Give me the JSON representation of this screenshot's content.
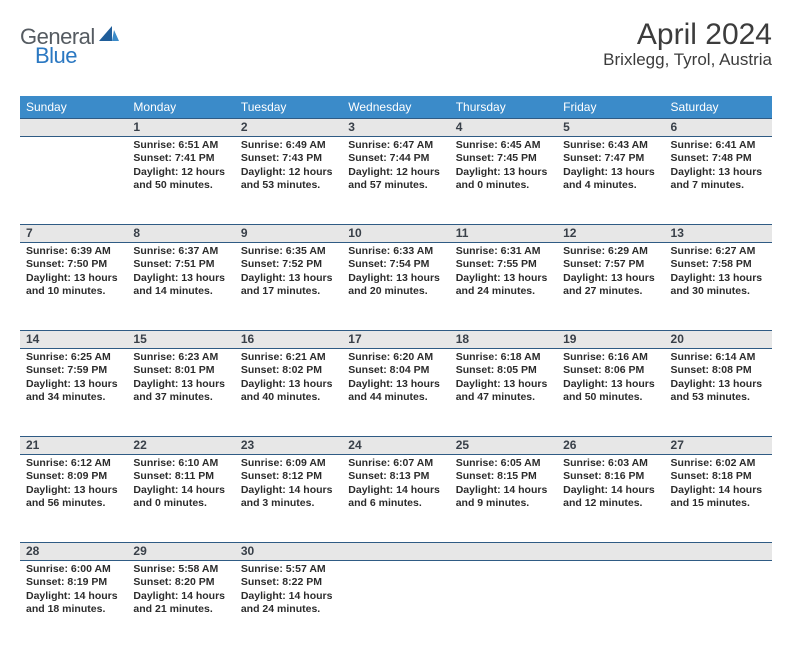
{
  "brand": {
    "name": "General",
    "accent": "Blue"
  },
  "title": "April 2024",
  "location": "Brixlegg, Tyrol, Austria",
  "colors": {
    "header_bg": "#3b8bc9",
    "header_text": "#ffffff",
    "daynum_bg": "#e7e7e7",
    "border": "#2f5b84",
    "body_text": "#2c2c2c",
    "title_text": "#3c3c3c",
    "logo_gray": "#555b61",
    "logo_blue": "#2b78c2"
  },
  "weekdays": [
    "Sunday",
    "Monday",
    "Tuesday",
    "Wednesday",
    "Thursday",
    "Friday",
    "Saturday"
  ],
  "weeks": [
    [
      null,
      {
        "d": "1",
        "sr": "6:51 AM",
        "ss": "7:41 PM",
        "dl": "Daylight: 12 hours and 50 minutes."
      },
      {
        "d": "2",
        "sr": "6:49 AM",
        "ss": "7:43 PM",
        "dl": "Daylight: 12 hours and 53 minutes."
      },
      {
        "d": "3",
        "sr": "6:47 AM",
        "ss": "7:44 PM",
        "dl": "Daylight: 12 hours and 57 minutes."
      },
      {
        "d": "4",
        "sr": "6:45 AM",
        "ss": "7:45 PM",
        "dl": "Daylight: 13 hours and 0 minutes."
      },
      {
        "d": "5",
        "sr": "6:43 AM",
        "ss": "7:47 PM",
        "dl": "Daylight: 13 hours and 4 minutes."
      },
      {
        "d": "6",
        "sr": "6:41 AM",
        "ss": "7:48 PM",
        "dl": "Daylight: 13 hours and 7 minutes."
      }
    ],
    [
      {
        "d": "7",
        "sr": "6:39 AM",
        "ss": "7:50 PM",
        "dl": "Daylight: 13 hours and 10 minutes."
      },
      {
        "d": "8",
        "sr": "6:37 AM",
        "ss": "7:51 PM",
        "dl": "Daylight: 13 hours and 14 minutes."
      },
      {
        "d": "9",
        "sr": "6:35 AM",
        "ss": "7:52 PM",
        "dl": "Daylight: 13 hours and 17 minutes."
      },
      {
        "d": "10",
        "sr": "6:33 AM",
        "ss": "7:54 PM",
        "dl": "Daylight: 13 hours and 20 minutes."
      },
      {
        "d": "11",
        "sr": "6:31 AM",
        "ss": "7:55 PM",
        "dl": "Daylight: 13 hours and 24 minutes."
      },
      {
        "d": "12",
        "sr": "6:29 AM",
        "ss": "7:57 PM",
        "dl": "Daylight: 13 hours and 27 minutes."
      },
      {
        "d": "13",
        "sr": "6:27 AM",
        "ss": "7:58 PM",
        "dl": "Daylight: 13 hours and 30 minutes."
      }
    ],
    [
      {
        "d": "14",
        "sr": "6:25 AM",
        "ss": "7:59 PM",
        "dl": "Daylight: 13 hours and 34 minutes."
      },
      {
        "d": "15",
        "sr": "6:23 AM",
        "ss": "8:01 PM",
        "dl": "Daylight: 13 hours and 37 minutes."
      },
      {
        "d": "16",
        "sr": "6:21 AM",
        "ss": "8:02 PM",
        "dl": "Daylight: 13 hours and 40 minutes."
      },
      {
        "d": "17",
        "sr": "6:20 AM",
        "ss": "8:04 PM",
        "dl": "Daylight: 13 hours and 44 minutes."
      },
      {
        "d": "18",
        "sr": "6:18 AM",
        "ss": "8:05 PM",
        "dl": "Daylight: 13 hours and 47 minutes."
      },
      {
        "d": "19",
        "sr": "6:16 AM",
        "ss": "8:06 PM",
        "dl": "Daylight: 13 hours and 50 minutes."
      },
      {
        "d": "20",
        "sr": "6:14 AM",
        "ss": "8:08 PM",
        "dl": "Daylight: 13 hours and 53 minutes."
      }
    ],
    [
      {
        "d": "21",
        "sr": "6:12 AM",
        "ss": "8:09 PM",
        "dl": "Daylight: 13 hours and 56 minutes."
      },
      {
        "d": "22",
        "sr": "6:10 AM",
        "ss": "8:11 PM",
        "dl": "Daylight: 14 hours and 0 minutes."
      },
      {
        "d": "23",
        "sr": "6:09 AM",
        "ss": "8:12 PM",
        "dl": "Daylight: 14 hours and 3 minutes."
      },
      {
        "d": "24",
        "sr": "6:07 AM",
        "ss": "8:13 PM",
        "dl": "Daylight: 14 hours and 6 minutes."
      },
      {
        "d": "25",
        "sr": "6:05 AM",
        "ss": "8:15 PM",
        "dl": "Daylight: 14 hours and 9 minutes."
      },
      {
        "d": "26",
        "sr": "6:03 AM",
        "ss": "8:16 PM",
        "dl": "Daylight: 14 hours and 12 minutes."
      },
      {
        "d": "27",
        "sr": "6:02 AM",
        "ss": "8:18 PM",
        "dl": "Daylight: 14 hours and 15 minutes."
      }
    ],
    [
      {
        "d": "28",
        "sr": "6:00 AM",
        "ss": "8:19 PM",
        "dl": "Daylight: 14 hours and 18 minutes."
      },
      {
        "d": "29",
        "sr": "5:58 AM",
        "ss": "8:20 PM",
        "dl": "Daylight: 14 hours and 21 minutes."
      },
      {
        "d": "30",
        "sr": "5:57 AM",
        "ss": "8:22 PM",
        "dl": "Daylight: 14 hours and 24 minutes."
      },
      null,
      null,
      null,
      null
    ]
  ]
}
